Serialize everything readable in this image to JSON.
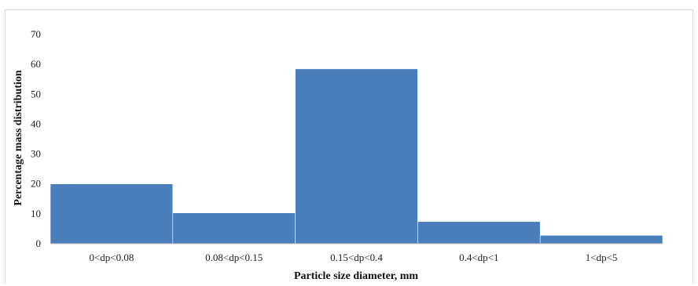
{
  "chart_data": {
    "type": "bar",
    "categories": [
      "0<dp<0.08",
      "0.08<dp<0.15",
      "0.15<dp<0.4",
      "0.4<dp<1",
      "1<dp<5"
    ],
    "values": [
      20,
      10.3,
      58.5,
      7.4,
      2.8
    ],
    "title": "",
    "xlabel": "Particle size diameter, mm",
    "ylabel": "Percentage mass distribution",
    "ylim": [
      0,
      70
    ],
    "yticks": [
      0,
      10,
      20,
      30,
      40,
      50,
      60,
      70
    ],
    "grid": false,
    "legend": "none",
    "bar_color": "#4a7ebb"
  }
}
